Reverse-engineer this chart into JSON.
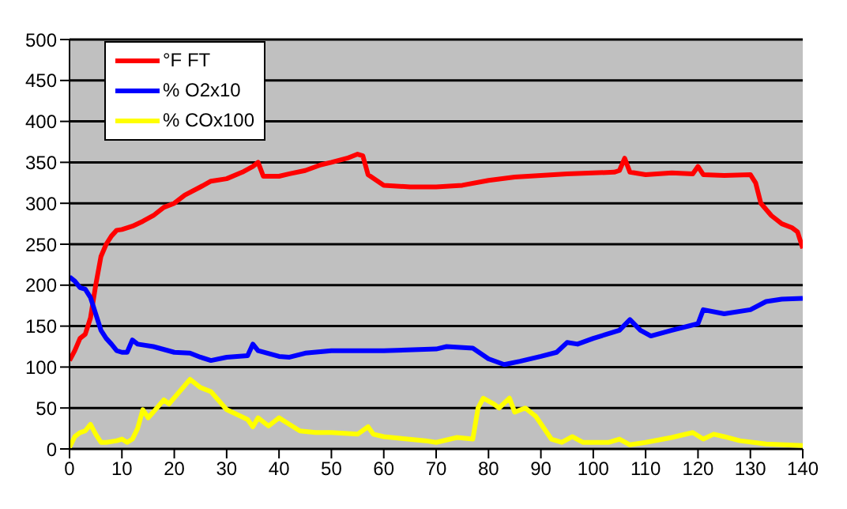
{
  "chart_data": {
    "type": "line",
    "xlim": [
      0,
      140
    ],
    "xticks": [
      0,
      10,
      20,
      30,
      40,
      50,
      60,
      70,
      80,
      90,
      100,
      110,
      120,
      130,
      140
    ],
    "ylim": [
      0,
      500
    ],
    "yticks": [
      0,
      50,
      100,
      150,
      200,
      250,
      300,
      350,
      400,
      450,
      500
    ],
    "grid": "y",
    "legend": "top left",
    "marker": "none",
    "line_style": "solid",
    "series": [
      {
        "name": "°F FT",
        "color": "#ff0000",
        "x": [
          0,
          1,
          2,
          3,
          4,
          5,
          6,
          7,
          8,
          9,
          10,
          12,
          14,
          16,
          18,
          20,
          22,
          25,
          27,
          30,
          33,
          35,
          36,
          37,
          40,
          42,
          45,
          48,
          50,
          53,
          55,
          56,
          57,
          60,
          65,
          70,
          75,
          80,
          85,
          90,
          95,
          100,
          104,
          105,
          106,
          107,
          110,
          115,
          119,
          120,
          121,
          125,
          130,
          131,
          132,
          134,
          136,
          138,
          139,
          140
        ],
        "values": [
          108,
          120,
          135,
          140,
          160,
          200,
          235,
          250,
          260,
          267,
          268,
          272,
          278,
          285,
          295,
          300,
          310,
          320,
          327,
          330,
          338,
          345,
          350,
          333,
          333,
          336,
          340,
          347,
          350,
          355,
          360,
          358,
          335,
          322,
          320,
          320,
          322,
          328,
          332,
          334,
          336,
          337,
          338,
          340,
          355,
          338,
          335,
          337,
          336,
          345,
          335,
          334,
          335,
          325,
          300,
          285,
          275,
          270,
          265,
          245
        ]
      },
      {
        "name": "% O2x10",
        "color": "#0000ff",
        "x": [
          0,
          1,
          2,
          3,
          4,
          5,
          6,
          7,
          8,
          9,
          10,
          11,
          12,
          13,
          16,
          20,
          23,
          25,
          27,
          30,
          34,
          35,
          36,
          40,
          42,
          45,
          50,
          60,
          70,
          72,
          77,
          80,
          83,
          86,
          90,
          93,
          95,
          97,
          100,
          105,
          107,
          109,
          111,
          115,
          120,
          121,
          125,
          130,
          133,
          136,
          140
        ],
        "values": [
          210,
          205,
          197,
          195,
          185,
          165,
          145,
          135,
          128,
          120,
          118,
          118,
          133,
          128,
          125,
          118,
          117,
          112,
          108,
          112,
          114,
          128,
          120,
          113,
          112,
          117,
          120,
          120,
          122,
          125,
          123,
          110,
          103,
          107,
          113,
          118,
          130,
          128,
          135,
          145,
          158,
          145,
          138,
          145,
          153,
          170,
          165,
          170,
          180,
          183,
          184
        ]
      },
      {
        "name": "% COx100",
        "color": "#ffff00",
        "x": [
          0,
          1,
          2,
          3,
          4,
          5,
          6,
          7,
          9,
          10,
          11,
          12,
          13,
          14,
          15,
          16,
          18,
          19,
          21,
          23,
          25,
          27,
          30,
          32,
          34,
          35,
          36,
          38,
          40,
          42,
          44,
          47,
          50,
          55,
          57,
          58,
          60,
          63,
          68,
          70,
          74,
          77,
          78,
          79,
          81,
          82,
          84,
          85,
          87,
          89,
          92,
          94,
          96,
          98,
          103,
          105,
          107,
          110,
          115,
          119,
          121,
          123,
          125,
          128,
          133,
          140
        ],
        "values": [
          2,
          15,
          20,
          22,
          30,
          18,
          8,
          8,
          10,
          12,
          8,
          12,
          25,
          48,
          38,
          45,
          60,
          55,
          70,
          85,
          75,
          70,
          48,
          42,
          36,
          27,
          38,
          28,
          38,
          30,
          22,
          20,
          20,
          18,
          27,
          18,
          15,
          13,
          10,
          8,
          14,
          12,
          50,
          62,
          55,
          50,
          62,
          45,
          50,
          40,
          12,
          8,
          15,
          8,
          8,
          12,
          5,
          8,
          14,
          20,
          12,
          18,
          15,
          10,
          6,
          4
        ]
      }
    ]
  }
}
